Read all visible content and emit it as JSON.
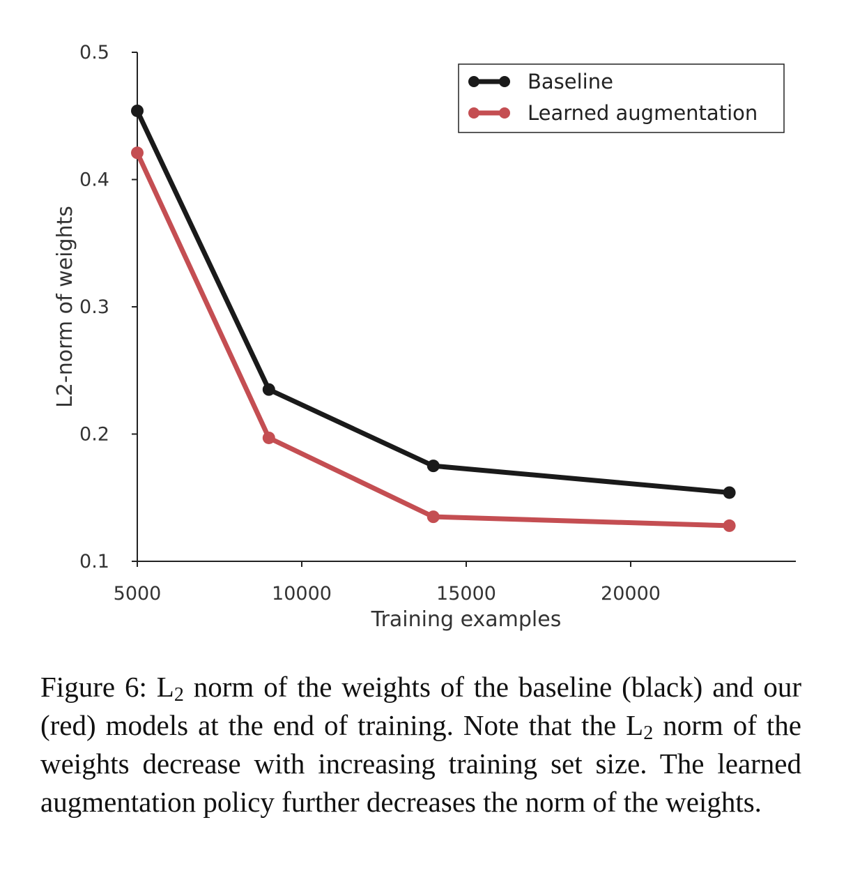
{
  "chart_data": {
    "type": "line",
    "xlabel": "Training examples",
    "ylabel": "L2-norm of weights",
    "xlim": [
      5000,
      25000
    ],
    "ylim": [
      0.1,
      0.5
    ],
    "xticks": [
      "5000",
      "10000",
      "15000",
      "20000"
    ],
    "yticks": [
      "0.1",
      "0.2",
      "0.3",
      "0.4",
      "0.5"
    ],
    "grid": false,
    "legend_position": "top-right",
    "series": [
      {
        "name": "Baseline",
        "color": "#1a1a1a",
        "x": [
          5000,
          9000,
          14000,
          23000
        ],
        "y": [
          0.454,
          0.235,
          0.175,
          0.154
        ]
      },
      {
        "name": "Learned augmentation",
        "color": "#c44e52",
        "x": [
          5000,
          9000,
          14000,
          23000
        ],
        "y": [
          0.421,
          0.197,
          0.135,
          0.128
        ]
      }
    ]
  },
  "caption": {
    "prefix": "Figure 6: L",
    "sub1": "2",
    "mid": " norm of the weights of the baseline (black) and our (red) models at the end of training. Note that the L",
    "sub2": "2",
    "suffix": " norm of the weights decrease with increasing training set size. The learned augmentation policy further decreases the norm of the weights."
  }
}
